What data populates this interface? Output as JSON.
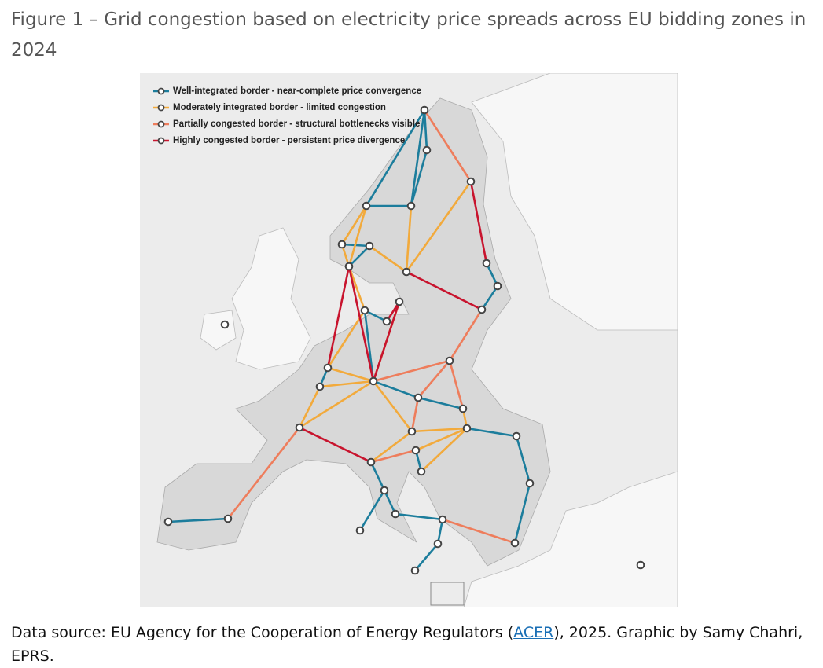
{
  "caption": "Figure 1 – Grid congestion based on electricity price spreads across EU bidding zones in 2024",
  "legend": {
    "items": [
      {
        "label": "Well-integrated border - near-complete price convergence",
        "color": "#1c7d9c"
      },
      {
        "label": "Moderately integrated border - limited congestion",
        "color": "#f2aa3c"
      },
      {
        "label": "Partially congested border - structural bottlenecks visible",
        "color": "#ee7d5c"
      },
      {
        "label": "Highly congested border - persistent price divergence",
        "color": "#c8142e"
      }
    ]
  },
  "source": {
    "before": "Data source: EU Agency for the Cooperation of Energy Regulators (",
    "link": "ACER",
    "after": "), 2025. Graphic by Samy Chahri, EPRS."
  }
}
